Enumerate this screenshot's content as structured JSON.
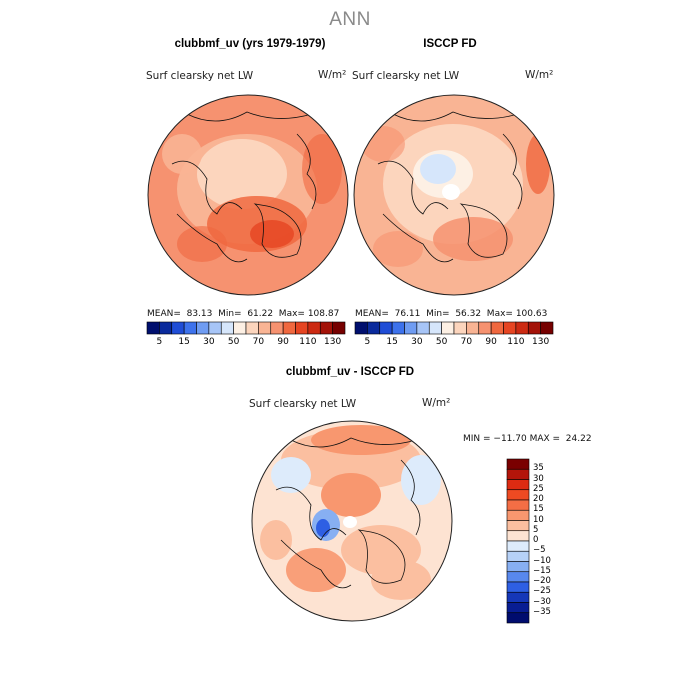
{
  "figure": {
    "title": "ANN",
    "panels": [
      {
        "title": "clubbmf_uv (yrs 1979-1979)",
        "var_label": "Surf clearsky net LW",
        "units": "W/m²",
        "stats": "MEAN=  83.13  Min=  61.22  Max= 108.87"
      },
      {
        "title": "ISCCP FD",
        "var_label": "Surf clearsky net LW",
        "units": "W/m²",
        "stats": "MEAN=  76.11  Min=  56.32  Max= 100.63"
      },
      {
        "title": "clubbmf_uv - ISCCP FD",
        "var_label": "Surf clearsky net LW",
        "units": "W/m²",
        "stats": "MIN = −11.70 MAX =  24.22"
      }
    ],
    "colorbar_top": {
      "tick_labels": [
        "5",
        "15",
        "30",
        "50",
        "70",
        "90",
        "110",
        "130"
      ],
      "colors": [
        "#000f6e",
        "#0a2a9c",
        "#1f4dd6",
        "#3d72ec",
        "#6f9cf2",
        "#a7c5f7",
        "#d6e6fb",
        "#fdf0e4",
        "#fcd5bd",
        "#f9b494",
        "#f69270",
        "#f0683f",
        "#e64522",
        "#cc2a12",
        "#a31208",
        "#760000"
      ]
    },
    "colorbar_diff": {
      "tick_labels": [
        "35",
        "30",
        "25",
        "20",
        "15",
        "10",
        "5",
        "0",
        "−5",
        "−10",
        "−15",
        "−20",
        "−25",
        "−30",
        "−35"
      ],
      "colors": [
        "#7a0000",
        "#b3150a",
        "#dd2b12",
        "#ee4a22",
        "#f46e45",
        "#f8976f",
        "#fbbfa0",
        "#fde3d2",
        "#ddebfb",
        "#b6d1f7",
        "#87aff2",
        "#5888ed",
        "#2e5fe3",
        "#1537b8",
        "#081d93",
        "#000c6e"
      ]
    }
  },
  "chart_data": [
    {
      "type": "heatmap",
      "title": "clubbmf_uv (yrs 1979-1979)",
      "subtitle": "Surf clearsky net LW",
      "units": "W/m²",
      "projection": "north polar stereographic",
      "mean": 83.13,
      "min": 61.22,
      "max": 108.87,
      "levels": [
        5,
        15,
        30,
        50,
        70,
        90,
        110,
        130
      ]
    },
    {
      "type": "heatmap",
      "title": "ISCCP FD",
      "subtitle": "Surf clearsky net LW",
      "units": "W/m²",
      "projection": "north polar stereographic",
      "mean": 76.11,
      "min": 56.32,
      "max": 100.63,
      "levels": [
        5,
        15,
        30,
        50,
        70,
        90,
        110,
        130
      ]
    },
    {
      "type": "heatmap",
      "title": "clubbmf_uv - ISCCP FD",
      "subtitle": "Surf clearsky net LW",
      "units": "W/m²",
      "projection": "north polar stereographic",
      "min": -11.7,
      "max": 24.22,
      "levels": [
        -35,
        -30,
        -25,
        -20,
        -15,
        -10,
        -5,
        0,
        5,
        10,
        15,
        20,
        25,
        30,
        35
      ]
    }
  ]
}
